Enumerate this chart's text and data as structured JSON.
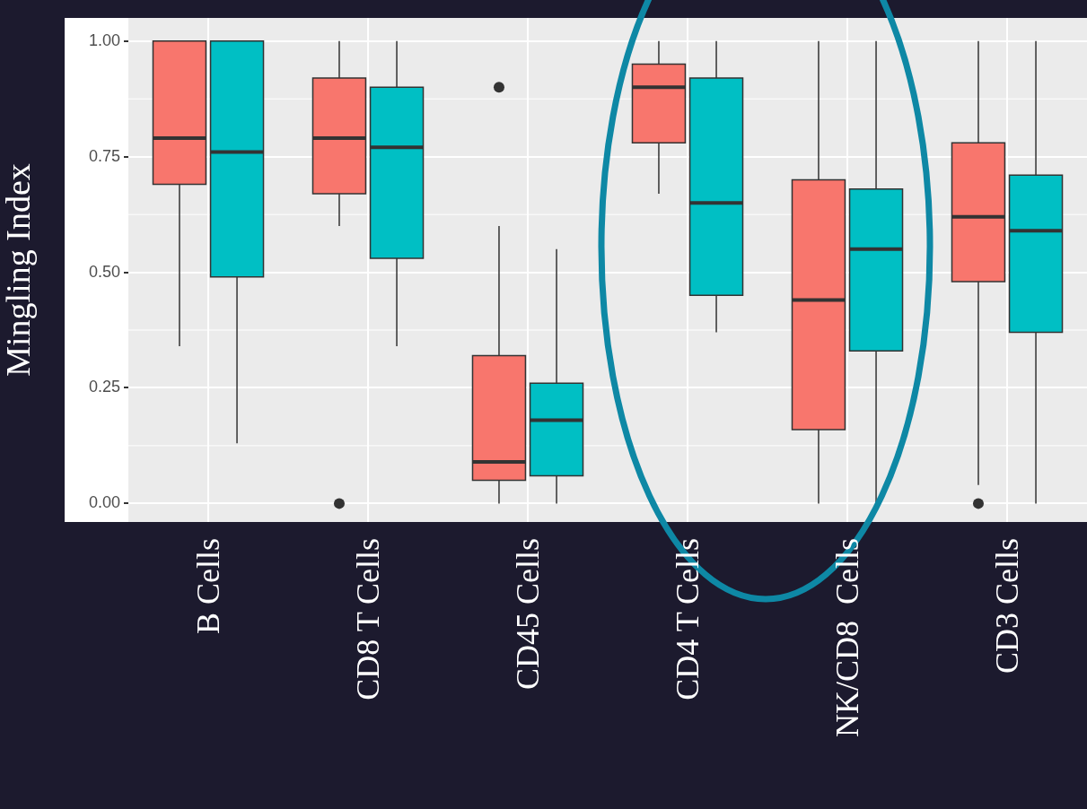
{
  "chart_data": {
    "type": "box",
    "ylabel": "Mingling Index",
    "categories": [
      "B Cells",
      "CD8 T Cells",
      "CD45 Cells",
      "CD4 T Cells",
      "NK/CD8  Cells",
      "CD3 Cells"
    ],
    "ylim": [
      -0.04,
      1.05
    ],
    "yticks": [
      {
        "value": 0,
        "label": "0.00"
      },
      {
        "value": 0.25,
        "label": "0.25"
      },
      {
        "value": 0.5,
        "label": "0.50"
      },
      {
        "value": 0.75,
        "label": "0.75"
      },
      {
        "value": 1,
        "label": "1.00"
      }
    ],
    "grid": true,
    "series": [
      {
        "color": "#f8766d",
        "boxes": [
          {
            "low": 0.34,
            "q1": 0.69,
            "median": 0.79,
            "q3": 1.0,
            "high": 1.0
          },
          {
            "low": 0.6,
            "q1": 0.67,
            "median": 0.79,
            "q3": 0.92,
            "high": 1.0,
            "outliers": [
              0
            ]
          },
          {
            "low": 0,
            "q1": 0.05,
            "median": 0.09,
            "q3": 0.32,
            "high": 0.6,
            "outliers": [
              0.9
            ]
          },
          {
            "low": 0.67,
            "q1": 0.78,
            "median": 0.9,
            "q3": 0.95,
            "high": 1.0
          },
          {
            "low": 0,
            "q1": 0.16,
            "median": 0.44,
            "q3": 0.7,
            "high": 1.0
          },
          {
            "low": 0.04,
            "q1": 0.48,
            "median": 0.62,
            "q3": 0.78,
            "high": 1.0,
            "outliers": [
              0
            ]
          }
        ]
      },
      {
        "color": "#00bfc4",
        "boxes": [
          {
            "low": 0.13,
            "q1": 0.49,
            "median": 0.76,
            "q3": 1.0,
            "high": 1.0
          },
          {
            "low": 0.34,
            "q1": 0.53,
            "median": 0.77,
            "q3": 0.9,
            "high": 1.0
          },
          {
            "low": 0,
            "q1": 0.06,
            "median": 0.18,
            "q3": 0.26,
            "high": 0.55
          },
          {
            "low": 0.37,
            "q1": 0.45,
            "median": 0.65,
            "q3": 0.92,
            "high": 1.0
          },
          {
            "low": 0,
            "q1": 0.33,
            "median": 0.55,
            "q3": 0.68,
            "high": 1.0
          },
          {
            "low": 0,
            "q1": 0.37,
            "median": 0.59,
            "q3": 0.71,
            "high": 1.0
          }
        ]
      }
    ]
  }
}
